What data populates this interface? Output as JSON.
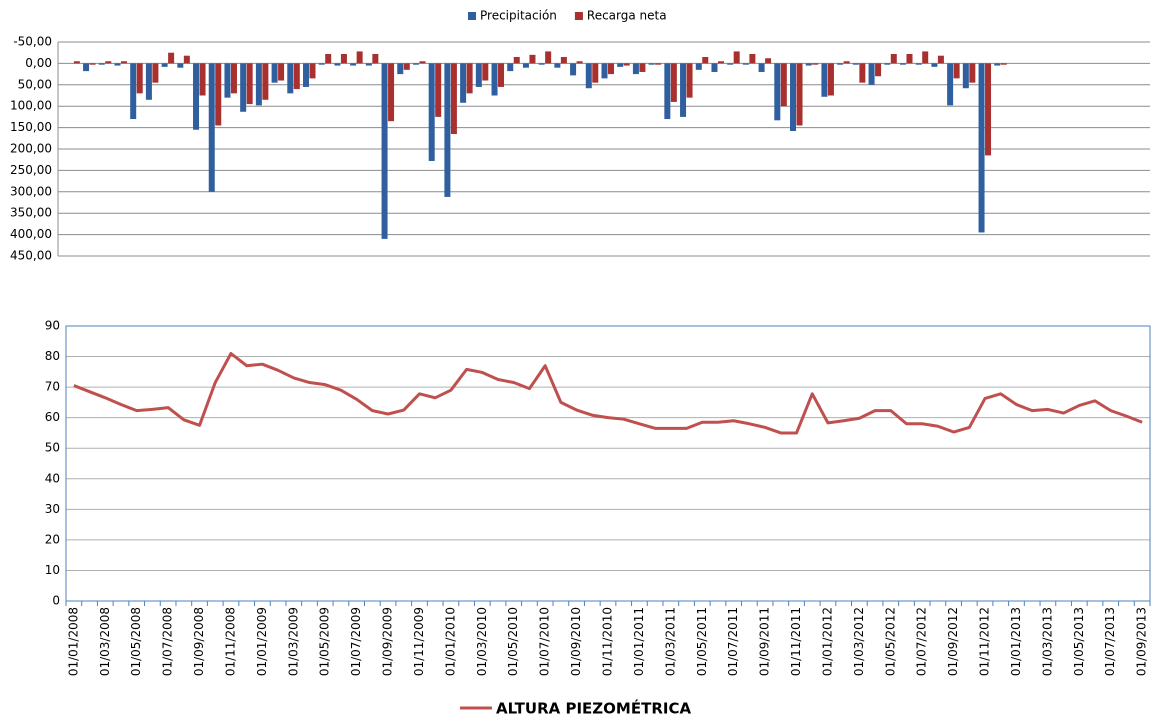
{
  "chart_data": [
    {
      "type": "bar",
      "inverted": true,
      "categories": [
        null,
        null,
        null,
        null,
        null,
        null,
        null,
        null,
        null,
        null,
        null,
        null,
        null,
        null,
        null,
        null,
        null,
        null,
        null,
        null,
        null,
        null,
        null,
        null,
        null,
        null,
        null,
        null,
        null,
        null,
        null,
        null,
        null,
        null,
        null,
        null,
        null,
        null,
        null,
        null,
        null,
        null,
        null,
        null,
        null,
        null,
        null,
        null,
        null,
        null,
        null,
        null,
        null,
        null,
        null,
        null,
        null,
        null,
        null,
        null
      ],
      "series": [
        {
          "name": "Precipitación",
          "color": "#2f5f9e",
          "values": [
            0,
            18,
            3,
            5,
            130,
            85,
            8,
            10,
            155,
            300,
            80,
            113,
            98,
            45,
            70,
            55,
            3,
            5,
            5,
            5,
            410,
            25,
            3,
            228,
            312,
            92,
            55,
            75,
            18,
            10,
            3,
            10,
            28,
            58,
            35,
            8,
            25,
            3,
            130,
            125,
            15,
            20,
            3,
            3,
            20,
            133,
            158,
            5,
            78,
            3,
            3,
            50,
            3,
            3,
            3,
            8,
            98,
            58,
            395,
            5
          ]
        },
        {
          "name": "Recarga neta",
          "color": "#a8302e",
          "values": [
            -5,
            3,
            -5,
            -5,
            70,
            45,
            -25,
            -18,
            75,
            145,
            70,
            95,
            85,
            40,
            60,
            35,
            -22,
            -22,
            -28,
            -22,
            135,
            15,
            -5,
            125,
            165,
            70,
            40,
            55,
            -15,
            -20,
            -28,
            -15,
            -5,
            45,
            25,
            5,
            20,
            3,
            90,
            80,
            -15,
            -5,
            -28,
            -22,
            -12,
            100,
            145,
            3,
            75,
            -5,
            45,
            30,
            -22,
            -22,
            -28,
            -18,
            35,
            45,
            215,
            3
          ]
        }
      ],
      "ylim": [
        -50,
        450
      ],
      "yticks": [
        {
          "value": -50,
          "label": "-50,00"
        },
        {
          "value": 0,
          "label": "0,00"
        },
        {
          "value": 50,
          "label": "50,00"
        },
        {
          "value": 100,
          "label": "100,00"
        },
        {
          "value": 150,
          "label": "150,00"
        },
        {
          "value": 200,
          "label": "200,00"
        },
        {
          "value": 250,
          "label": "250,00"
        },
        {
          "value": 300,
          "label": "300,00"
        },
        {
          "value": 350,
          "label": "350,00"
        },
        {
          "value": 400,
          "label": "400,00"
        },
        {
          "value": 450,
          "label": "450,00"
        }
      ],
      "grid": true,
      "legend": "top"
    },
    {
      "type": "line",
      "categories": [
        "01/01/2008",
        null,
        "01/03/2008",
        null,
        "01/05/2008",
        null,
        "01/07/2008",
        null,
        "01/09/2008",
        null,
        "01/11/2008",
        null,
        "01/01/2009",
        null,
        "01/03/2009",
        null,
        "01/05/2009",
        null,
        "01/07/2009",
        null,
        "01/09/2009",
        null,
        "01/11/2009",
        null,
        "01/01/2010",
        null,
        "01/03/2010",
        null,
        "01/05/2010",
        null,
        "01/07/2010",
        null,
        "01/09/2010",
        null,
        "01/11/2010",
        null,
        "01/01/2011",
        null,
        "01/03/2011",
        null,
        "01/05/2011",
        null,
        "01/07/2011",
        null,
        "01/09/2011",
        null,
        "01/11/2011",
        null,
        "01/01/2012",
        null,
        "01/03/2012",
        null,
        "01/05/2012",
        null,
        "01/07/2012",
        null,
        "01/09/2012",
        null,
        "01/11/2012",
        null,
        "01/01/2013",
        null,
        "01/03/2013",
        null,
        "01/05/2013",
        null,
        "01/07/2013",
        null,
        "01/09/2013"
      ],
      "series": [
        {
          "name": "ALTURA PIEZOMÉTRICA",
          "color": "#c0504d",
          "values": [
            70.5,
            68.5,
            66.5,
            64.3,
            62.3,
            62.7,
            63.3,
            59.3,
            57.5,
            71.5,
            81,
            77,
            77.5,
            75.5,
            73,
            71.5,
            70.8,
            69,
            66,
            62.3,
            61.2,
            62.5,
            67.8,
            66.5,
            69,
            75.8,
            74.8,
            72.5,
            71.5,
            69.5,
            77,
            65,
            62.5,
            60.8,
            60,
            59.5,
            58,
            56.5,
            56.5,
            56.5,
            58.5,
            58.5,
            59,
            58,
            56.8,
            55,
            55,
            67.8,
            58.3,
            59,
            59.8,
            62.3,
            62.3,
            58,
            58,
            57.2,
            55.3,
            56.8,
            66.3,
            67.8,
            64.3,
            62.3,
            62.7,
            61.5,
            64,
            65.5,
            62.3,
            60.5,
            58.5
          ]
        }
      ],
      "ylim": [
        0,
        90
      ],
      "yticks": [
        0,
        10,
        20,
        30,
        40,
        50,
        60,
        70,
        80,
        90
      ],
      "grid": true,
      "legend": "bottom"
    }
  ]
}
